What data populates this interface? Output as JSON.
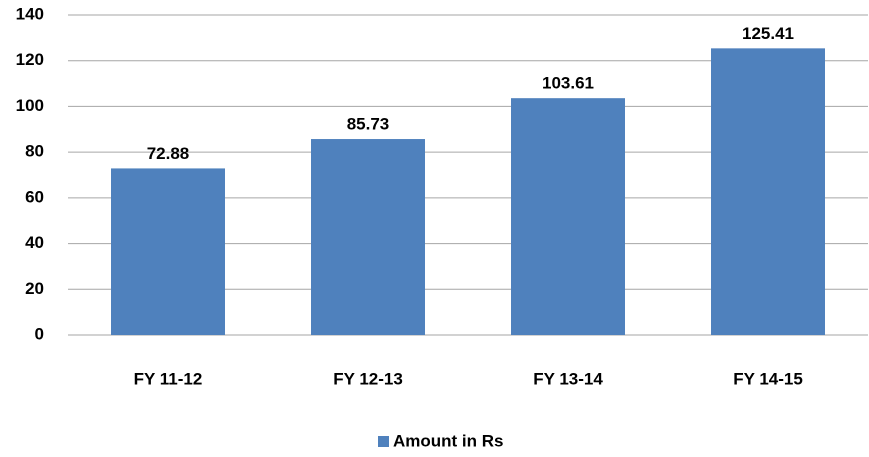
{
  "chart_data": {
    "type": "bar",
    "categories": [
      "FY 11-12",
      "FY 12-13",
      "FY 13-14",
      "FY 14-15"
    ],
    "series": [
      {
        "name": "Amount in Rs",
        "color": "#4f81bd",
        "values": [
          72.88,
          85.73,
          103.61,
          125.41
        ]
      }
    ],
    "ylim": [
      0,
      140
    ],
    "yticks": [
      0,
      20,
      40,
      60,
      80,
      100,
      120,
      140
    ],
    "grid": true,
    "legend": "bottom"
  }
}
